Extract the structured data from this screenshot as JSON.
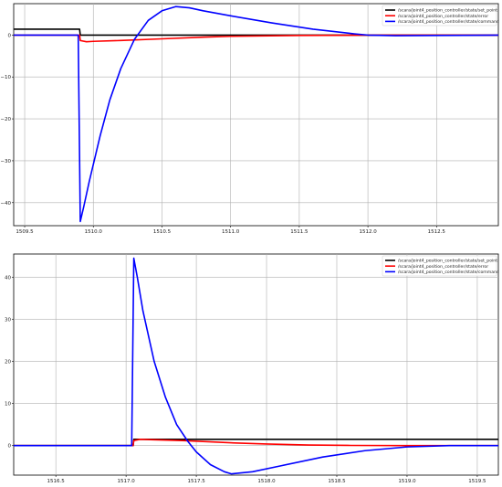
{
  "chart_data": [
    {
      "type": "line",
      "title": "",
      "xlabel": "",
      "ylabel": "",
      "xlim": [
        1509.42,
        1512.95
      ],
      "ylim": [
        -45.5,
        7.5
      ],
      "grid": true,
      "legend_placement": "top-right",
      "xticks": [
        1509.5,
        1510.0,
        1510.5,
        1511.0,
        1511.5,
        1512.0,
        1512.5
      ],
      "xtick_labels": [
        "1509.5",
        "1510.0",
        "1510.5",
        "1511.0",
        "1511.5",
        "1512.0",
        "1512.5"
      ],
      "yticks": [
        0,
        -10,
        -20,
        -30,
        -40
      ],
      "ytick_labels": [
        "0",
        "−10",
        "−20",
        "−30",
        "−40"
      ],
      "series": [
        {
          "name": "/scara/joint4_position_controller/state/set_point",
          "color": "#000000",
          "x": [
            1509.42,
            1509.9,
            1509.905,
            1512.95
          ],
          "y": [
            1.4,
            1.4,
            0.0,
            0.0
          ]
        },
        {
          "name": "/scara/joint4_position_controller/state/error",
          "color": "#ff0000",
          "x": [
            1509.42,
            1509.9,
            1509.905,
            1509.95,
            1510.0,
            1510.2,
            1510.5,
            1510.8,
            1511.0,
            1511.5,
            1512.0,
            1512.95
          ],
          "y": [
            0.0,
            0.0,
            -1.3,
            -1.6,
            -1.5,
            -1.3,
            -0.9,
            -0.5,
            -0.3,
            -0.1,
            0.0,
            0.0
          ]
        },
        {
          "name": "/scara/joint4_position_controller/state/command",
          "color": "#0000ff",
          "x": [
            1509.42,
            1509.89,
            1509.905,
            1509.93,
            1509.97,
            1510.05,
            1510.12,
            1510.2,
            1510.3,
            1510.4,
            1510.5,
            1510.6,
            1510.7,
            1510.8,
            1511.0,
            1511.3,
            1511.6,
            1511.9,
            1512.0,
            1512.2,
            1512.5,
            1512.95
          ],
          "y": [
            0.0,
            0.0,
            -44.5,
            -41.0,
            -35.0,
            -24.0,
            -15.5,
            -8.0,
            -1.0,
            3.5,
            5.8,
            6.8,
            6.5,
            5.8,
            4.6,
            2.9,
            1.4,
            0.3,
            0.0,
            -0.15,
            -0.1,
            0.0
          ]
        }
      ]
    },
    {
      "type": "line",
      "title": "",
      "xlabel": "",
      "ylabel": "",
      "xlim": [
        1516.2,
        1519.65
      ],
      "ylim": [
        -7.0,
        45.5
      ],
      "grid": true,
      "legend_placement": "top-right",
      "xticks": [
        1516.5,
        1517.0,
        1517.5,
        1518.0,
        1518.5,
        1519.0,
        1519.5
      ],
      "xtick_labels": [
        "1516.5",
        "1517.0",
        "1517.5",
        "1518.0",
        "1518.5",
        "1519.0",
        "1519.5"
      ],
      "yticks": [
        0,
        10,
        20,
        30,
        40
      ],
      "ytick_labels": [
        "0",
        "10",
        "20",
        "30",
        "40"
      ],
      "series": [
        {
          "name": "/scara/joint4_position_controller/state/set_point",
          "color": "#000000",
          "x": [
            1516.2,
            1517.05,
            1517.055,
            1519.65
          ],
          "y": [
            0.0,
            0.0,
            1.5,
            1.5
          ]
        },
        {
          "name": "/scara/joint4_position_controller/state/error",
          "color": "#ff0000",
          "x": [
            1516.2,
            1517.05,
            1517.055,
            1517.1,
            1517.2,
            1517.4,
            1517.6,
            1517.8,
            1518.0,
            1518.3,
            1518.6,
            1519.0,
            1519.65
          ],
          "y": [
            0.0,
            0.0,
            1.2,
            1.5,
            1.4,
            1.2,
            0.9,
            0.6,
            0.4,
            0.15,
            0.05,
            0.0,
            0.0
          ]
        },
        {
          "name": "/scara/joint4_position_controller/state/command",
          "color": "#0000ff",
          "x": [
            1516.2,
            1517.04,
            1517.055,
            1517.08,
            1517.12,
            1517.2,
            1517.28,
            1517.36,
            1517.44,
            1517.5,
            1517.6,
            1517.7,
            1517.75,
            1517.9,
            1518.1,
            1518.4,
            1518.7,
            1519.0,
            1519.3,
            1519.65
          ],
          "y": [
            0.0,
            0.0,
            44.5,
            40.0,
            32.0,
            20.0,
            11.5,
            5.0,
            1.0,
            -1.5,
            -4.5,
            -6.2,
            -6.7,
            -6.2,
            -4.8,
            -2.7,
            -1.2,
            -0.3,
            0.0,
            0.0
          ]
        }
      ]
    }
  ]
}
